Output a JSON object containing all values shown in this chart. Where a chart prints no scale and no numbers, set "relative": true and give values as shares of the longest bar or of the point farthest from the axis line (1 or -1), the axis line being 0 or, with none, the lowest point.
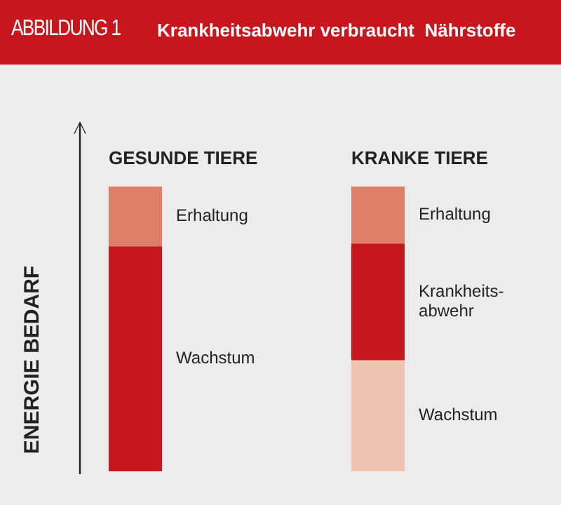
{
  "chart_data": {
    "type": "bar",
    "title": "Krankheitsabwehr verbraucht  Nährstoffe",
    "subtitle": "ABBILDUNG 1",
    "ylabel": "ENERGIE BEDARF",
    "categories": [
      "GESUNDE TIERE",
      "KRANKE TIERE"
    ],
    "stacked": true,
    "relative": true,
    "series": [
      {
        "name": "Wachstum",
        "colors": [
          "#c8161d",
          "#f0c3b1"
        ],
        "values": [
          0.79,
          0.39
        ]
      },
      {
        "name": "Krankheits-abwehr",
        "colors": [
          "#c8161d",
          "#c8161d"
        ],
        "values": [
          null,
          0.41
        ]
      },
      {
        "name": "Erhaltung",
        "colors": [
          "#e07f68",
          "#e07f68"
        ],
        "values": [
          0.21,
          0.2
        ]
      }
    ]
  }
}
